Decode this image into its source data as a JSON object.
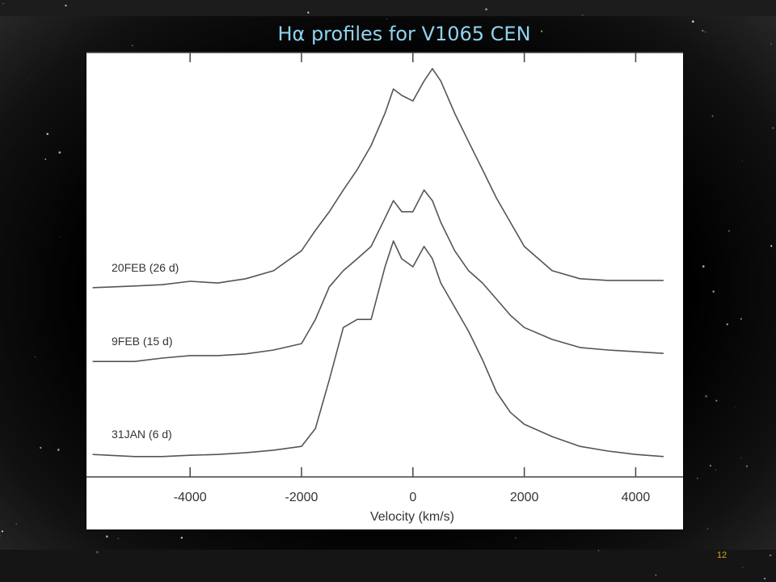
{
  "chart_data": {
    "type": "line",
    "title": "Hα profiles for V1065 CEN",
    "xlabel": "Velocity (km/s)",
    "x": [
      -5750,
      -5000,
      -4500,
      -4000,
      -3500,
      -3000,
      -2500,
      -2000,
      -1750,
      -1500,
      -1250,
      -1000,
      -750,
      -500,
      -350,
      -200,
      0,
      200,
      350,
      500,
      750,
      1000,
      1250,
      1500,
      1750,
      2000,
      2500,
      3000,
      3500,
      4000,
      4500
    ],
    "series": [
      {
        "name": "20FEB (26 d)",
        "color": "#555555",
        "values": [
          44.6,
          45.0,
          45.3,
          46.1,
          45.7,
          46.7,
          48.6,
          53.3,
          58.1,
          62.5,
          67.6,
          72.4,
          78.1,
          85.7,
          91.4,
          89.9,
          88.6,
          93.3,
          96.2,
          93.3,
          85.7,
          79.0,
          72.4,
          65.7,
          60.0,
          54.3,
          48.6,
          46.7,
          46.3,
          46.3,
          46.3
        ]
      },
      {
        "name": "9FEB (15 d)",
        "color": "#555555",
        "values": [
          27.2,
          27.2,
          28.0,
          28.6,
          28.6,
          29.0,
          29.9,
          31.4,
          37.1,
          44.8,
          48.6,
          51.4,
          54.3,
          61.0,
          65.1,
          62.5,
          62.5,
          67.6,
          65.1,
          60.0,
          53.3,
          48.6,
          45.7,
          41.9,
          38.1,
          35.2,
          32.4,
          30.5,
          29.9,
          29.5,
          29.1
        ]
      },
      {
        "name": "31JAN (6 d)",
        "color": "#555555",
        "values": [
          5.3,
          4.8,
          4.8,
          5.1,
          5.3,
          5.7,
          6.3,
          7.2,
          11.4,
          22.9,
          35.2,
          37.1,
          37.1,
          49.5,
          55.6,
          51.4,
          49.5,
          54.3,
          51.4,
          45.7,
          40.0,
          34.3,
          27.6,
          20.0,
          15.2,
          12.4,
          9.5,
          7.2,
          6.1,
          5.3,
          4.8
        ]
      }
    ],
    "xlim": [
      -5860,
      4850
    ],
    "xticks": [
      -4000,
      -2000,
      0,
      2000,
      4000
    ],
    "ylim": [
      0,
      100
    ]
  },
  "slide_number": "12"
}
